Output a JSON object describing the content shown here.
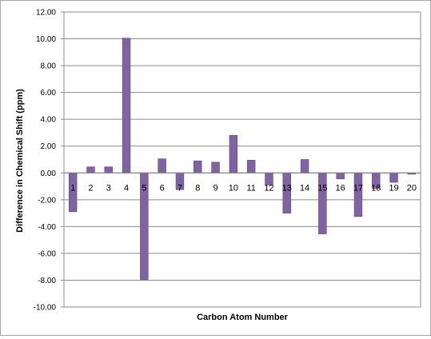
{
  "chart_data": {
    "type": "bar",
    "title": "",
    "xlabel": "Carbon Atom Number",
    "ylabel": "Difference in Chemical Shift (ppm)",
    "ylim": [
      -10,
      12
    ],
    "ytick_step": 2,
    "yticks": [
      "12.00",
      "10.00",
      "8.00",
      "6.00",
      "4.00",
      "2.00",
      "0.00",
      "-2.00",
      "-4.00",
      "-6.00",
      "-8.00",
      "-10.00"
    ],
    "categories": [
      "1",
      "2",
      "3",
      "4",
      "5",
      "6",
      "7",
      "8",
      "9",
      "10",
      "11",
      "12",
      "13",
      "14",
      "15",
      "16",
      "17",
      "18",
      "19",
      "20"
    ],
    "values": [
      -2.9,
      0.45,
      0.45,
      10.05,
      -7.95,
      1.05,
      -1.25,
      0.9,
      0.8,
      2.8,
      0.95,
      -0.9,
      -3.0,
      1.0,
      -4.55,
      -0.45,
      -3.25,
      -1.15,
      -0.7,
      -0.1
    ],
    "grid": true,
    "legend": "none",
    "bar_color": "#8064a2",
    "bar_edge_color": "#5f4880",
    "grid_color": "#8c8c8c"
  }
}
